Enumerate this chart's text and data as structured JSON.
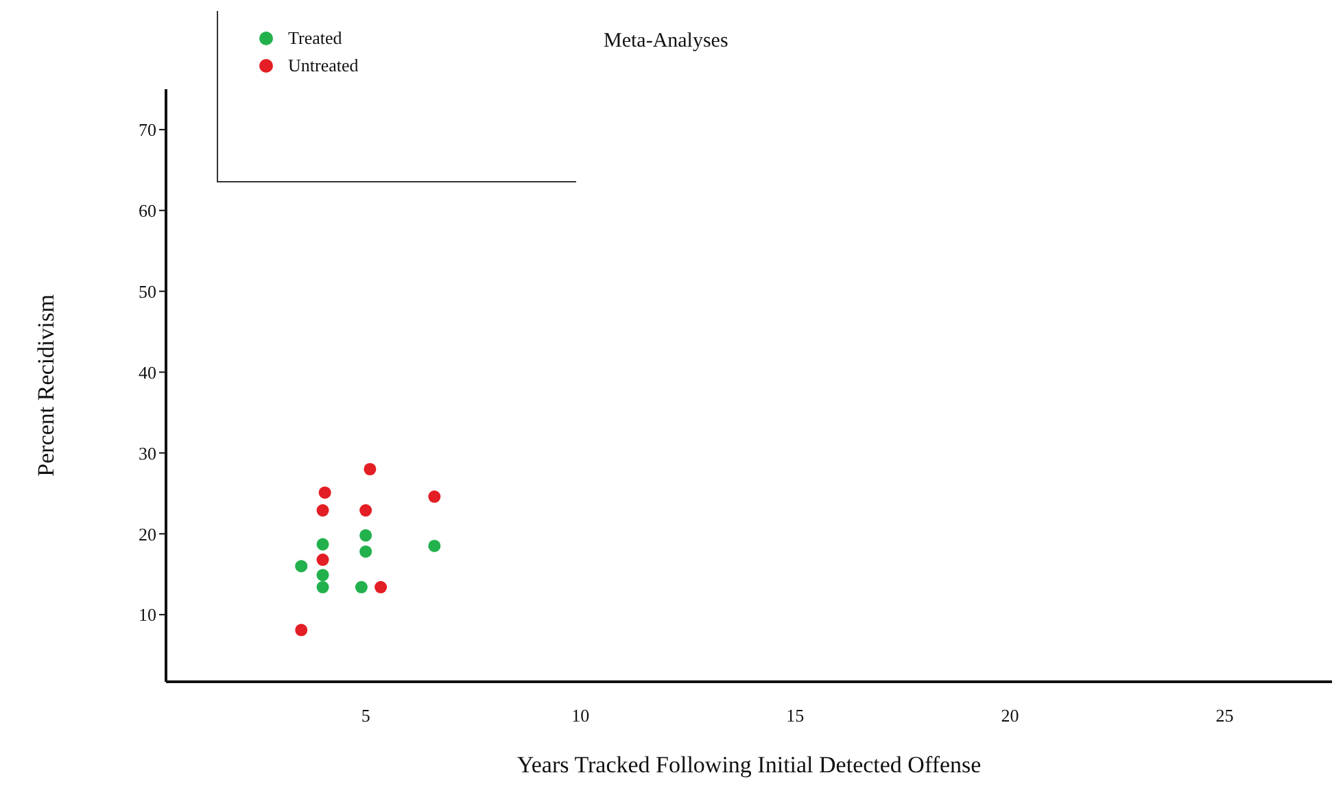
{
  "chart_data": {
    "type": "scatter",
    "title": "Meta-Analyses",
    "xlabel": "Years Tracked Following Initial Detected Offense",
    "ylabel": "Percent Recidivism",
    "series": [
      {
        "name": "Treated",
        "color": "#22b14c",
        "x": [
          3.5,
          4.0,
          4.0,
          4.0,
          5.0,
          5.0,
          4.9,
          6.6
        ],
        "values": [
          16.0,
          18.7,
          14.9,
          13.4,
          19.8,
          17.8,
          13.4,
          18.5
        ]
      },
      {
        "name": "Untreated",
        "color": "#e31e24",
        "x": [
          5.1,
          4.05,
          4.0,
          5.0,
          6.6,
          4.0,
          5.35,
          3.5
        ],
        "values": [
          28.0,
          25.1,
          22.9,
          22.9,
          24.6,
          16.8,
          13.4,
          8.1
        ]
      }
    ],
    "xlim": [
      0.35,
      27.5
    ],
    "xticks": [
      5,
      10,
      15,
      20,
      25
    ],
    "ylim": [
      1.7,
      75
    ],
    "yticks": [
      10,
      20,
      30,
      40,
      50,
      60,
      70
    ],
    "grid": false,
    "legend": "top left",
    "marker": "circle"
  }
}
